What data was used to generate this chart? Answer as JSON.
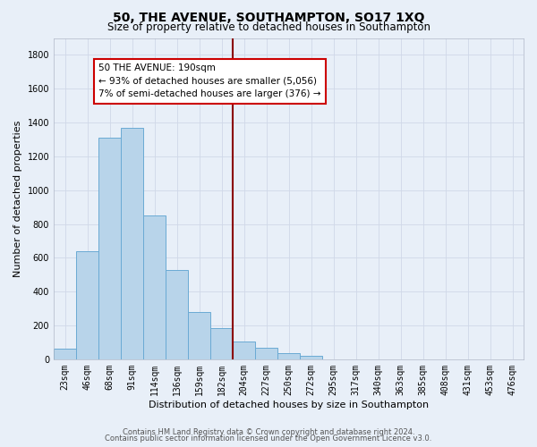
{
  "title": "50, THE AVENUE, SOUTHAMPTON, SO17 1XQ",
  "subtitle": "Size of property relative to detached houses in Southampton",
  "xlabel": "Distribution of detached houses by size in Southampton",
  "ylabel": "Number of detached properties",
  "bin_labels": [
    "23sqm",
    "46sqm",
    "68sqm",
    "91sqm",
    "114sqm",
    "136sqm",
    "159sqm",
    "182sqm",
    "204sqm",
    "227sqm",
    "250sqm",
    "272sqm",
    "295sqm",
    "317sqm",
    "340sqm",
    "363sqm",
    "385sqm",
    "408sqm",
    "431sqm",
    "453sqm",
    "476sqm"
  ],
  "bar_heights": [
    60,
    640,
    1310,
    1370,
    850,
    530,
    280,
    185,
    105,
    70,
    35,
    22,
    0,
    0,
    0,
    0,
    0,
    0,
    0,
    0,
    0
  ],
  "bar_color": "#b8d4ea",
  "bar_edge_color": "#6aaad4",
  "vline_x": 7.5,
  "vline_color": "#8b0000",
  "annotation_title": "50 THE AVENUE: 190sqm",
  "annotation_line1": "← 93% of detached houses are smaller (5,056)",
  "annotation_line2": "7% of semi-detached houses are larger (376) →",
  "annotation_box_facecolor": "#ffffff",
  "annotation_box_edgecolor": "#cc0000",
  "ylim": [
    0,
    1900
  ],
  "yticks": [
    0,
    200,
    400,
    600,
    800,
    1000,
    1200,
    1400,
    1600,
    1800
  ],
  "grid_color": "#d0d8e8",
  "bg_color": "#e8eff8",
  "footer1": "Contains HM Land Registry data © Crown copyright and database right 2024.",
  "footer2": "Contains public sector information licensed under the Open Government Licence v3.0.",
  "title_fontsize": 10,
  "subtitle_fontsize": 8.5,
  "axis_label_fontsize": 8,
  "tick_fontsize": 7,
  "annotation_fontsize": 7.5,
  "footer_fontsize": 6
}
